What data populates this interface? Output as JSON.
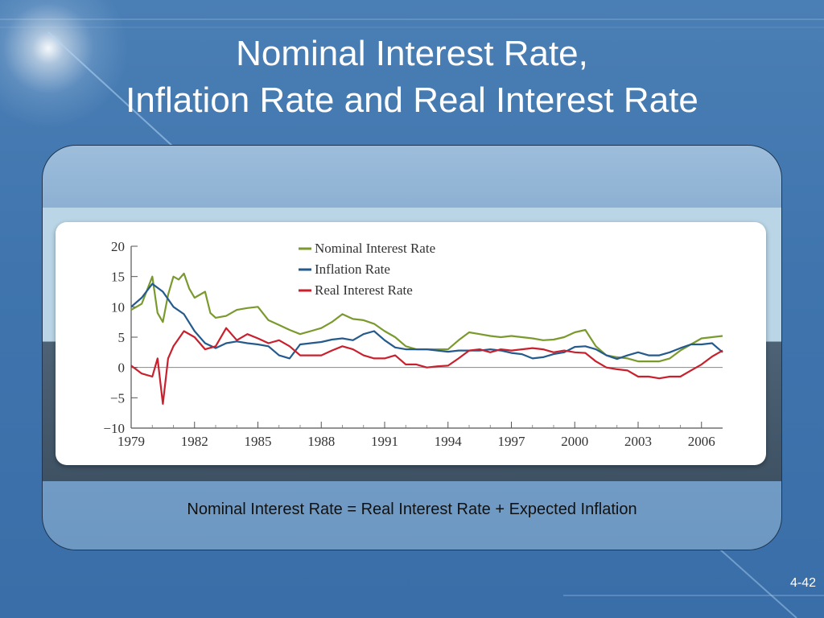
{
  "slide": {
    "title_line1": "Nominal Interest Rate,",
    "title_line2": "Inflation Rate and Real Interest Rate",
    "formula": "Nominal Interest Rate = Real Interest Rate + Expected Inflation",
    "slide_number": "4-42"
  },
  "chart_data": {
    "type": "line",
    "title": "",
    "xlabel": "",
    "ylabel": "",
    "xlim": [
      1979,
      2007
    ],
    "ylim": [
      -10,
      20
    ],
    "y_ticks": [
      20,
      15,
      10,
      5,
      0,
      -5,
      -10
    ],
    "y_tick_labels": [
      "20",
      "15",
      "10",
      "5",
      "0",
      "−5",
      "−10"
    ],
    "x_ticks": [
      1979,
      1982,
      1985,
      1988,
      1991,
      1994,
      1997,
      2000,
      2003,
      2006
    ],
    "x_tick_labels": [
      "1979",
      "1982",
      "1985",
      "1988",
      "1991",
      "1994",
      "1997",
      "2000",
      "2003",
      "2006"
    ],
    "zero_line": true,
    "legend_position": "top-center",
    "series": [
      {
        "name": "Nominal Interest Rate",
        "color": "#7a9a2e",
        "x": [
          1979,
          1979.5,
          1980,
          1980.25,
          1980.5,
          1980.75,
          1981,
          1981.25,
          1981.5,
          1981.75,
          1982,
          1982.5,
          1982.75,
          1983,
          1983.5,
          1984,
          1984.5,
          1985,
          1985.5,
          1986,
          1986.5,
          1987,
          1987.5,
          1988,
          1988.5,
          1989,
          1989.5,
          1990,
          1990.5,
          1991,
          1991.5,
          1992,
          1992.5,
          1993,
          1993.5,
          1994,
          1994.5,
          1995,
          1995.5,
          1996,
          1996.5,
          1997,
          1997.5,
          1998,
          1998.5,
          1999,
          1999.5,
          2000,
          2000.5,
          2001,
          2001.5,
          2002,
          2002.5,
          2003,
          2003.5,
          2004,
          2004.5,
          2005,
          2005.5,
          2006,
          2006.5,
          2007
        ],
        "y": [
          9.5,
          10.5,
          15,
          9,
          7.5,
          12,
          15,
          14.5,
          15.5,
          13,
          11.5,
          12.5,
          9,
          8.2,
          8.5,
          9.5,
          9.8,
          10,
          7.8,
          7,
          6.2,
          5.5,
          6,
          6.5,
          7.5,
          8.8,
          8,
          7.8,
          7.2,
          6,
          5,
          3.5,
          3,
          3,
          3,
          3,
          4.5,
          5.8,
          5.5,
          5.2,
          5,
          5.2,
          5,
          4.8,
          4.5,
          4.6,
          5,
          5.8,
          6.2,
          3.5,
          2,
          1.7,
          1.5,
          1,
          1,
          1,
          1.5,
          2.8,
          3.8,
          4.8,
          5,
          5.2
        ]
      },
      {
        "name": "Inflation Rate",
        "color": "#245a8c",
        "x": [
          1979,
          1979.5,
          1980,
          1980.5,
          1981,
          1981.5,
          1982,
          1982.5,
          1983,
          1983.5,
          1984,
          1984.5,
          1985,
          1985.5,
          1986,
          1986.5,
          1987,
          1987.5,
          1988,
          1988.5,
          1989,
          1989.5,
          1990,
          1990.5,
          1991,
          1991.5,
          1992,
          1992.5,
          1993,
          1993.5,
          1994,
          1994.5,
          1995,
          1995.5,
          1996,
          1996.5,
          1997,
          1997.5,
          1998,
          1998.5,
          1999,
          1999.5,
          2000,
          2000.5,
          2001,
          2001.5,
          2002,
          2002.5,
          2003,
          2003.5,
          2004,
          2004.5,
          2005,
          2005.5,
          2006,
          2006.5,
          2007
        ],
        "y": [
          10,
          11.5,
          13.8,
          12.5,
          10,
          8.8,
          6,
          4,
          3.2,
          4,
          4.3,
          4,
          3.8,
          3.5,
          2,
          1.5,
          3.8,
          4,
          4.2,
          4.6,
          4.8,
          4.5,
          5.5,
          6,
          4.5,
          3.3,
          3,
          3,
          3,
          2.8,
          2.6,
          2.8,
          2.8,
          2.8,
          3,
          2.8,
          2.4,
          2.2,
          1.5,
          1.7,
          2.2,
          2.5,
          3.4,
          3.5,
          3,
          2,
          1.4,
          2,
          2.5,
          2,
          2,
          2.5,
          3.2,
          3.8,
          3.8,
          4,
          2.5
        ]
      },
      {
        "name": "Real Interest Rate",
        "color": "#c8202d",
        "x": [
          1979,
          1979.5,
          1980,
          1980.25,
          1980.5,
          1980.75,
          1981,
          1981.5,
          1982,
          1982.5,
          1983,
          1983.5,
          1984,
          1984.5,
          1985,
          1985.5,
          1986,
          1986.5,
          1987,
          1987.5,
          1988,
          1988.5,
          1989,
          1989.5,
          1990,
          1990.5,
          1991,
          1991.5,
          1992,
          1992.5,
          1993,
          1993.5,
          1994,
          1994.5,
          1995,
          1995.5,
          1996,
          1996.5,
          1997,
          1997.5,
          1998,
          1998.5,
          1999,
          1999.5,
          2000,
          2000.5,
          2001,
          2001.5,
          2002,
          2002.5,
          2003,
          2003.5,
          2004,
          2004.5,
          2005,
          2005.5,
          2006,
          2006.5,
          2007
        ],
        "y": [
          0.3,
          -1,
          -1.5,
          1.5,
          -6,
          1.5,
          3.5,
          6,
          5,
          3,
          3.5,
          6.5,
          4.5,
          5.5,
          4.8,
          4,
          4.5,
          3.5,
          2,
          2,
          2,
          2.8,
          3.5,
          3,
          2,
          1.5,
          1.5,
          2,
          0.5,
          0.5,
          0,
          0.2,
          0.3,
          1.5,
          2.8,
          3,
          2.5,
          3,
          2.8,
          3,
          3.2,
          3,
          2.5,
          2.8,
          2.5,
          2.4,
          1,
          0,
          -0.3,
          -0.5,
          -1.5,
          -1.5,
          -1.8,
          -1.5,
          -1.5,
          -0.5,
          0.5,
          1.8,
          2.8
        ]
      }
    ]
  }
}
